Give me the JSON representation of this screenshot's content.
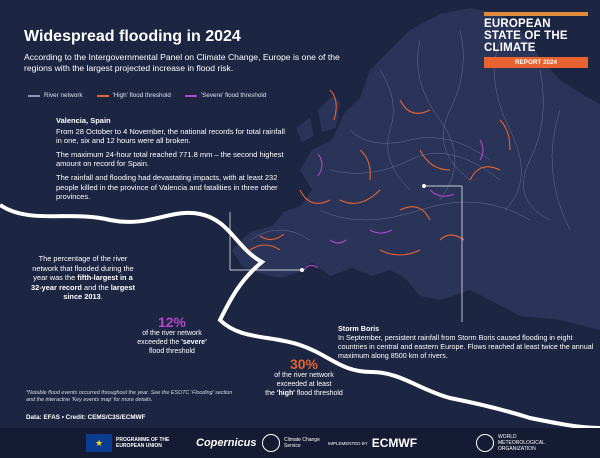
{
  "title": "Widespread flooding in 2024",
  "intro": "According to the Intergovernmental Panel on Climate Change, Europe is one of the regions with the largest projected increase in flood risk.",
  "legend": [
    {
      "label": "River network",
      "color": "#8a93b0"
    },
    {
      "label": "'High' flood threshold",
      "color": "#e8632f"
    },
    {
      "label": "'Severe' flood threshold",
      "color": "#b347c9"
    }
  ],
  "logo": {
    "line1": "EUROPEAN",
    "line2": "STATE OF THE",
    "line3": "CLIMATE",
    "report": "REPORT 2024"
  },
  "valencia": {
    "heading": "Valencia, Spain",
    "p1": "From 28 October to 4 November, the national records for total rainfall in one, six and 12 hours were all broken.",
    "p2": "The maximum 24-hour total reached 771.8 mm – the second highest amount on record for Spain.",
    "p3": "The rainfall and flooding had devastating impacts, with at least 232 people killed in the province of Valencia and fatalities in three other provinces."
  },
  "left_note": {
    "pre": "The percentage of the river network that flooded during the year was the",
    "bold1": "fifth-largest in a 32-year record",
    "mid": "and the",
    "bold2": "largest since 2013",
    "end": "."
  },
  "stat_severe": {
    "value": "12%",
    "line1": "of the river network",
    "line2_pre": "exceeded the ",
    "line2_bold": "'severe'",
    "line3": "flood threshold",
    "color": "#b347c9"
  },
  "stat_high": {
    "value": "30%",
    "line1": "of the river network",
    "line2": "exceeded at least",
    "line3_pre": "the ",
    "line3_bold": "'high'",
    "line3_post": " flood threshold",
    "color": "#e8632f"
  },
  "boris": {
    "heading": "Storm Boris",
    "text": "In September, persistent rainfall from Storm Boris caused flooding in eight countries in central and eastern Europe. Flows reached at least twice the annual maximum along 8500 km of rivers."
  },
  "footnote": "*Notable flood events occurred throughout the year. See the ESOTC 'Flooding' section and the interactive 'Key events map' for more details.",
  "credit": "Data: EFAS • Credit: CEMS/C3S/ECMWF",
  "footer": {
    "eu": "PROGRAMME OF THE EUROPEAN UNION",
    "copernicus": "Copernicus",
    "climate": "Climate Change Service",
    "implemented": "IMPLEMENTED BY",
    "ecmwf": "ECMWF",
    "wmo": "WORLD METEOROLOGICAL ORGANIZATION"
  }
}
